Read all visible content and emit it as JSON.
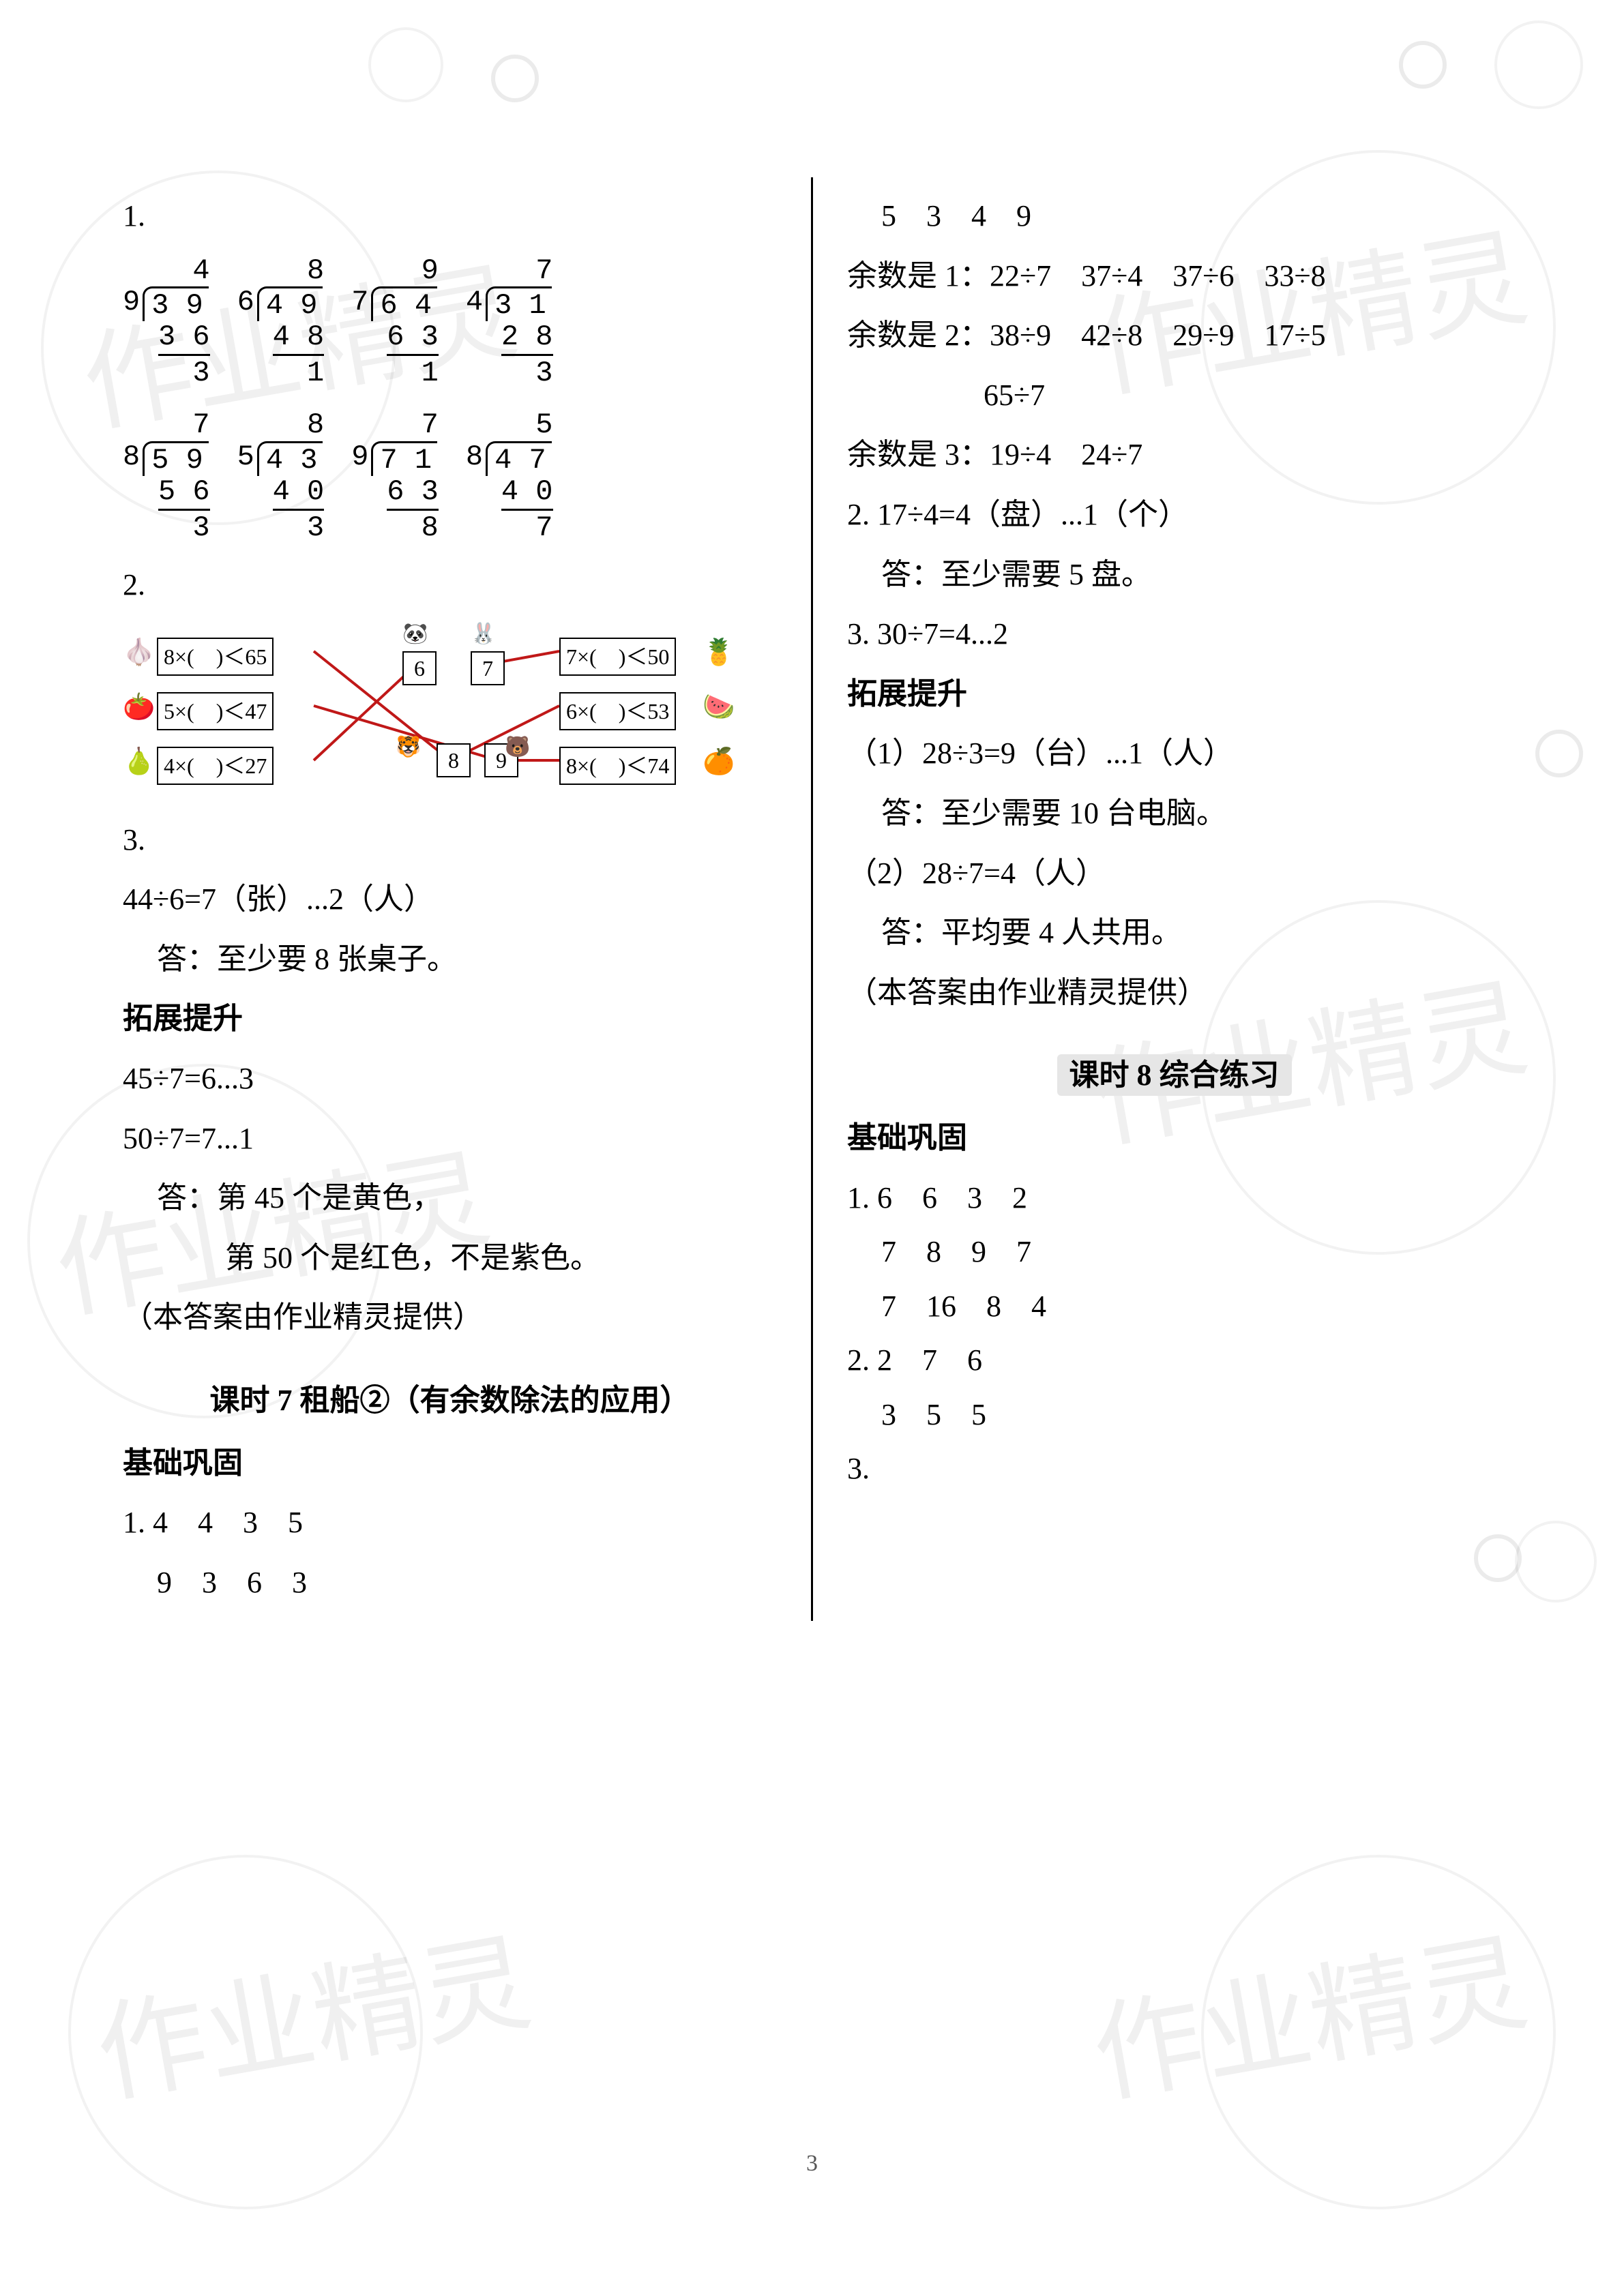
{
  "watermark_text": "作业精灵",
  "page_number": "3",
  "left": {
    "q1_label": "1.",
    "divisions_row1": [
      {
        "divisor": "9",
        "dividend": "3 9",
        "quotient": "4",
        "sub1": "3 6",
        "rem": "3"
      },
      {
        "divisor": "6",
        "dividend": "4 9",
        "quotient": "8",
        "sub1": "4 8",
        "rem": "1"
      },
      {
        "divisor": "7",
        "dividend": "6 4",
        "quotient": "9",
        "sub1": "6 3",
        "rem": "1"
      },
      {
        "divisor": "4",
        "dividend": "3 1",
        "quotient": "7",
        "sub1": "2 8",
        "rem": "3"
      }
    ],
    "divisions_row2": [
      {
        "divisor": "8",
        "dividend": "5 9",
        "quotient": "7",
        "sub1": "5 6",
        "rem": "3"
      },
      {
        "divisor": "5",
        "dividend": "4 3",
        "quotient": "8",
        "sub1": "4 0",
        "rem": "3"
      },
      {
        "divisor": "9",
        "dividend": "7 1",
        "quotient": "7",
        "sub1": "6 3",
        "rem": "8"
      },
      {
        "divisor": "8",
        "dividend": "4 7",
        "quotient": "5",
        "sub1": "4 0",
        "rem": "7"
      }
    ],
    "q2_label": "2.",
    "match": {
      "left_boxes": [
        {
          "expr": "8×(　)＜65",
          "icon": "🧄"
        },
        {
          "expr": "5×(　)＜47",
          "icon": "🍅"
        },
        {
          "expr": "4×(　)＜27",
          "icon": "🍐"
        }
      ],
      "mid_nums_top": [
        "6",
        "7"
      ],
      "mid_nums_bot": [
        "8",
        "9"
      ],
      "mid_icons": [
        "🐼",
        "🐰",
        "🐯",
        "🐻"
      ],
      "right_boxes": [
        {
          "expr": "7×(　)＜50",
          "icon": "🍍"
        },
        {
          "expr": "6×(　)＜53",
          "icon": "🍉"
        },
        {
          "expr": "8×(　)＜74",
          "icon": "🍊"
        }
      ],
      "line_color": "#c01818"
    },
    "q3_label": "3.",
    "q3_eq": "44÷6=7（张）...2（人）",
    "q3_ans": "答：至少要 8 张桌子。",
    "ext_title": "拓展提升",
    "ext_l1": "45÷7=6...3",
    "ext_l2": "50÷7=7...1",
    "ext_a1": "答：第 45 个是黄色，",
    "ext_a2": "第 50 个是红色，不是紫色。",
    "credit": "（本答案由作业精灵提供）",
    "lesson7_title": "课时 7 租船②（有余数除法的应用）",
    "basic_title": "基础巩固",
    "l7_1a": "1. 4　4　3　5",
    "l7_1b": "9　3　6　3"
  },
  "right": {
    "cont_a": "5　3　4　9",
    "rem1": "余数是 1：22÷7　37÷4　37÷6　33÷8",
    "rem2": "余数是 2：38÷9　42÷8　29÷9　17÷5",
    "rem2b": "65÷7",
    "rem3": "余数是 3：19÷4　24÷7",
    "q2": "2. 17÷4=4（盘）...1（个）",
    "q2a": "答：至少需要 5 盘。",
    "q3": "3. 30÷7=4...2",
    "ext_title": "拓展提升",
    "e1": "（1）28÷3=9（台）...1（人）",
    "e1a": "答：至少需要 10 台电脑。",
    "e2": "（2）28÷7=4（人）",
    "e2a": "答：平均要 4 人共用。",
    "credit": "（本答案由作业精灵提供）",
    "lesson8_title": "课时 8 综合练习",
    "basic_title": "基础巩固",
    "l8_1a": "1. 6　6　3　2",
    "l8_1b": "7　8　9　7",
    "l8_1c": "7　16　8　4",
    "l8_2a": "2. 2　7　6",
    "l8_2b": "3　5　5",
    "l8_3": "3."
  },
  "style": {
    "bg": "#ffffff",
    "text": "#000000",
    "wm_color": "rgba(0,0,0,0.06)",
    "font_body": 44,
    "font_match": 32
  }
}
